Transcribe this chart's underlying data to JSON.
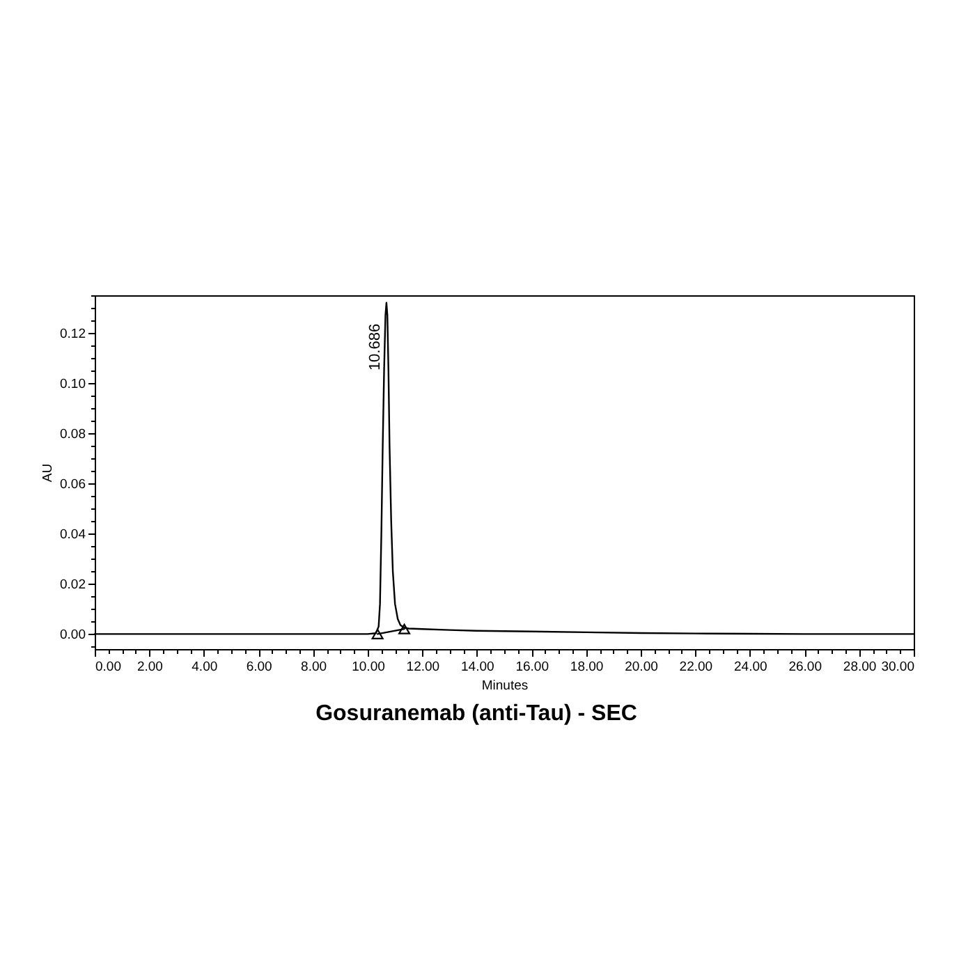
{
  "chart_data": {
    "type": "line",
    "title": "Gosuranemab (anti-Tau) - SEC",
    "xlabel": "Minutes",
    "ylabel": "AU",
    "xlim": [
      0,
      30
    ],
    "ylim": [
      -0.006,
      0.135
    ],
    "xticks": [
      {
        "value": 0,
        "label": "0.00"
      },
      {
        "value": 0.5,
        "label": null
      },
      {
        "value": 1,
        "label": null
      },
      {
        "value": 1.5,
        "label": null
      },
      {
        "value": 2,
        "label": "2.00"
      },
      {
        "value": 2.5,
        "label": null
      },
      {
        "value": 3,
        "label": null
      },
      {
        "value": 3.5,
        "label": null
      },
      {
        "value": 4,
        "label": "4.00"
      },
      {
        "value": 4.5,
        "label": null
      },
      {
        "value": 5,
        "label": null
      },
      {
        "value": 5.5,
        "label": null
      },
      {
        "value": 6,
        "label": "6.00"
      },
      {
        "value": 6.5,
        "label": null
      },
      {
        "value": 7,
        "label": null
      },
      {
        "value": 7.5,
        "label": null
      },
      {
        "value": 8,
        "label": "8.00"
      },
      {
        "value": 8.5,
        "label": null
      },
      {
        "value": 9,
        "label": null
      },
      {
        "value": 9.5,
        "label": null
      },
      {
        "value": 10,
        "label": "10.00"
      },
      {
        "value": 10.5,
        "label": null
      },
      {
        "value": 11,
        "label": null
      },
      {
        "value": 11.5,
        "label": null
      },
      {
        "value": 12,
        "label": "12.00"
      },
      {
        "value": 12.5,
        "label": null
      },
      {
        "value": 13,
        "label": null
      },
      {
        "value": 13.5,
        "label": null
      },
      {
        "value": 14,
        "label": "14.00"
      },
      {
        "value": 14.5,
        "label": null
      },
      {
        "value": 15,
        "label": null
      },
      {
        "value": 15.5,
        "label": null
      },
      {
        "value": 16,
        "label": "16.00"
      },
      {
        "value": 16.5,
        "label": null
      },
      {
        "value": 17,
        "label": null
      },
      {
        "value": 17.5,
        "label": null
      },
      {
        "value": 18,
        "label": "18.00"
      },
      {
        "value": 18.5,
        "label": null
      },
      {
        "value": 19,
        "label": null
      },
      {
        "value": 19.5,
        "label": null
      },
      {
        "value": 20,
        "label": "20.00"
      },
      {
        "value": 20.5,
        "label": null
      },
      {
        "value": 21,
        "label": null
      },
      {
        "value": 21.5,
        "label": null
      },
      {
        "value": 22,
        "label": "22.00"
      },
      {
        "value": 22.5,
        "label": null
      },
      {
        "value": 23,
        "label": null
      },
      {
        "value": 23.5,
        "label": null
      },
      {
        "value": 24,
        "label": "24.00"
      },
      {
        "value": 24.5,
        "label": null
      },
      {
        "value": 25,
        "label": null
      },
      {
        "value": 25.5,
        "label": null
      },
      {
        "value": 26,
        "label": "26.00"
      },
      {
        "value": 26.5,
        "label": null
      },
      {
        "value": 27,
        "label": null
      },
      {
        "value": 27.5,
        "label": null
      },
      {
        "value": 28,
        "label": "28.00"
      },
      {
        "value": 28.5,
        "label": null
      },
      {
        "value": 29,
        "label": null
      },
      {
        "value": 29.5,
        "label": null
      },
      {
        "value": 30,
        "label": "30.00"
      }
    ],
    "yticks": [
      {
        "value": -0.005,
        "label": null
      },
      {
        "value": 0,
        "label": "0.00"
      },
      {
        "value": 0.005,
        "label": null
      },
      {
        "value": 0.01,
        "label": null
      },
      {
        "value": 0.015,
        "label": null
      },
      {
        "value": 0.02,
        "label": "0.02"
      },
      {
        "value": 0.025,
        "label": null
      },
      {
        "value": 0.03,
        "label": null
      },
      {
        "value": 0.035,
        "label": null
      },
      {
        "value": 0.04,
        "label": "0.04"
      },
      {
        "value": 0.045,
        "label": null
      },
      {
        "value": 0.05,
        "label": null
      },
      {
        "value": 0.055,
        "label": null
      },
      {
        "value": 0.06,
        "label": "0.06"
      },
      {
        "value": 0.065,
        "label": null
      },
      {
        "value": 0.07,
        "label": null
      },
      {
        "value": 0.075,
        "label": null
      },
      {
        "value": 0.08,
        "label": "0.08"
      },
      {
        "value": 0.085,
        "label": null
      },
      {
        "value": 0.09,
        "label": null
      },
      {
        "value": 0.095,
        "label": null
      },
      {
        "value": 0.1,
        "label": "0.10"
      },
      {
        "value": 0.105,
        "label": null
      },
      {
        "value": 0.11,
        "label": null
      },
      {
        "value": 0.115,
        "label": null
      },
      {
        "value": 0.12,
        "label": "0.12"
      },
      {
        "value": 0.125,
        "label": null
      },
      {
        "value": 0.13,
        "label": null
      },
      {
        "value": 0.135,
        "label": null
      }
    ],
    "annotations": [
      {
        "text": "10.686",
        "x": 10.686,
        "y": 0.132
      }
    ],
    "series": [
      {
        "color": "#000000",
        "x": [
          0,
          1,
          3,
          5,
          8,
          9,
          10,
          10.3,
          10.4,
          10.45,
          10.5,
          10.55,
          10.6,
          10.65,
          10.686,
          10.72,
          10.76,
          10.8,
          10.86,
          10.92,
          11,
          11.1,
          11.2,
          11.35,
          11.5,
          12,
          13,
          14,
          16,
          18,
          20,
          22,
          24,
          26,
          30
        ],
        "values": [
          0,
          0,
          0,
          0,
          0,
          0,
          0,
          0.0003,
          0.003,
          0.012,
          0.04,
          0.075,
          0.105,
          0.127,
          0.132,
          0.127,
          0.105,
          0.075,
          0.045,
          0.025,
          0.012,
          0.006,
          0.0035,
          0.0025,
          0.0022,
          0.002,
          0.0016,
          0.0013,
          0.001,
          0.0007,
          0.0004,
          0.0002,
          0.0001,
          0,
          0
        ]
      },
      {
        "color": "#000000",
        "x": [
          10.36,
          11.34
        ],
        "values": [
          0,
          0.002
        ],
        "marker": "triangle"
      }
    ]
  }
}
